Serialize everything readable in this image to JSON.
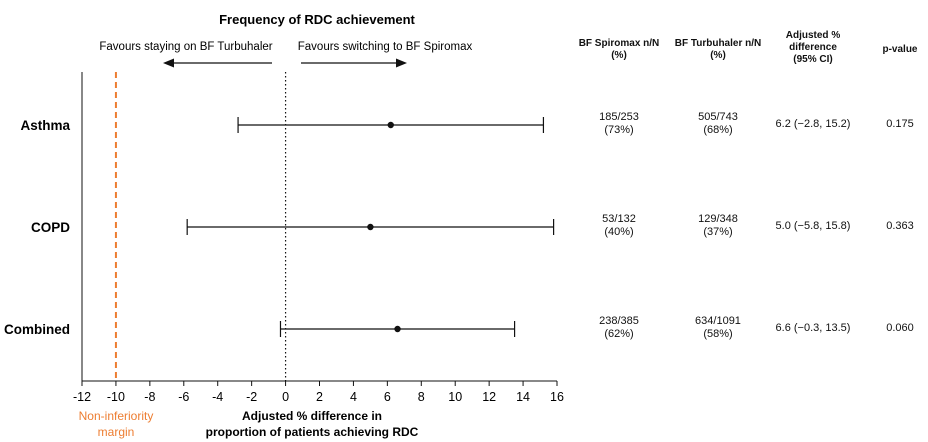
{
  "chart_data": {
    "type": "forest",
    "title": "Frequency of RDC achievement",
    "arrow_left_label": "Favours staying on BF Turbuhaler",
    "arrow_right_label": "Favours switching to BF Spiromax",
    "xlabel_lines": [
      "Adjusted % difference in",
      "proportion of patients achieving RDC"
    ],
    "xlim": [
      -12,
      16
    ],
    "x_ticks": [
      "-12",
      "-10",
      "-8",
      "-6",
      "-4",
      "-2",
      "0",
      "2",
      "4",
      "6",
      "8",
      "10",
      "12",
      "14",
      "16"
    ],
    "reference_line": 0,
    "margin": {
      "value": -10,
      "label_lines": [
        "Non-inferiority",
        "margin"
      ],
      "color": "#ED7D31"
    },
    "rows": [
      {
        "label": "Asthma",
        "estimate": 6.2,
        "ci_low": -2.8,
        "ci_high": 15.2
      },
      {
        "label": "COPD",
        "estimate": 5.0,
        "ci_low": -5.8,
        "ci_high": 15.8
      },
      {
        "label": "Combined",
        "estimate": 6.6,
        "ci_low": -0.3,
        "ci_high": 13.5
      }
    ]
  },
  "table": {
    "headers": {
      "spiromax_lines": [
        "BF Spiromax n/N",
        "(%)"
      ],
      "turbuhaler_lines": [
        "BF Turbuhaler n/N",
        "(%)"
      ],
      "adjusted_lines": [
        "Adjusted %",
        "difference",
        "(95% CI)"
      ],
      "pvalue": "p-value"
    },
    "rows": [
      {
        "spiromax_n": "185/253",
        "spiromax_pct": "(73%)",
        "turbuhaler_n": "505/743",
        "turbuhaler_pct": "(68%)",
        "adjusted": "6.2 (−2.8, 15.2)",
        "pvalue": "0.175"
      },
      {
        "spiromax_n": "53/132",
        "spiromax_pct": "(40%)",
        "turbuhaler_n": "129/348",
        "turbuhaler_pct": "(37%)",
        "adjusted": "5.0 (−5.8, 15.8)",
        "pvalue": "0.363"
      },
      {
        "spiromax_n": "238/385",
        "spiromax_pct": "(62%)",
        "turbuhaler_n": "634/1091",
        "turbuhaler_pct": "(58%)",
        "adjusted": "6.6 (−0.3, 13.5)",
        "pvalue": "0.060"
      }
    ]
  }
}
